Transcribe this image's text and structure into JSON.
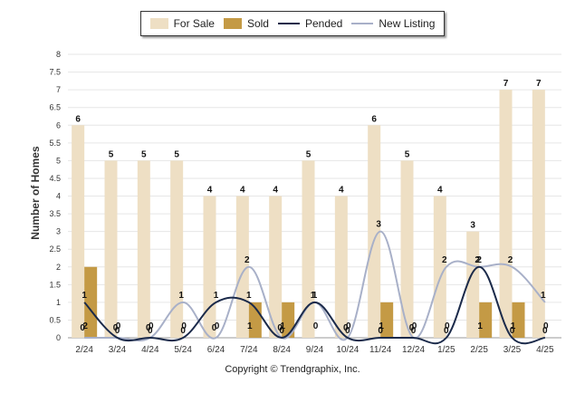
{
  "chart_data": {
    "type": "bar",
    "categories": [
      "2/24",
      "3/24",
      "4/24",
      "5/24",
      "6/24",
      "7/24",
      "8/24",
      "9/24",
      "10/24",
      "11/24",
      "12/24",
      "1/25",
      "2/25",
      "3/25",
      "4/25"
    ],
    "series": [
      {
        "name": "For Sale",
        "type": "bar",
        "color": "#eedfc4",
        "values": [
          6,
          5,
          5,
          5,
          4,
          4,
          4,
          5,
          4,
          6,
          5,
          4,
          3,
          7,
          7
        ]
      },
      {
        "name": "Sold",
        "type": "bar",
        "color": "#c49a45",
        "values": [
          2,
          0,
          0,
          0,
          0,
          1,
          1,
          0,
          0,
          1,
          0,
          0,
          1,
          1,
          0
        ]
      },
      {
        "name": "Pended",
        "type": "line",
        "color": "#1b2a4a",
        "values": [
          1,
          0,
          0,
          0,
          1,
          1,
          0,
          1,
          0,
          0,
          0,
          0,
          2,
          0,
          0
        ]
      },
      {
        "name": "New Listing",
        "type": "line",
        "color": "#a8b0c8",
        "values": [
          0,
          0,
          0,
          1,
          0,
          2,
          0,
          1,
          0,
          3,
          0,
          2,
          2,
          2,
          1
        ]
      }
    ],
    "ylabel": "Number of Homes",
    "ylim": [
      0,
      8
    ],
    "yticks": [
      "0",
      "0.5",
      "1",
      "1.5",
      "2",
      "2.5",
      "3",
      "3.5",
      "4",
      "4.5",
      "5",
      "5.5",
      "6",
      "6.5",
      "7",
      "7.5",
      "8"
    ],
    "grid": true,
    "legend_position": "top"
  },
  "legend": {
    "for_sale": "For Sale",
    "sold": "Sold",
    "pended": "Pended",
    "new_listing": "New Listing"
  },
  "footer": {
    "copyright": "Copyright © Trendgraphix, Inc."
  }
}
